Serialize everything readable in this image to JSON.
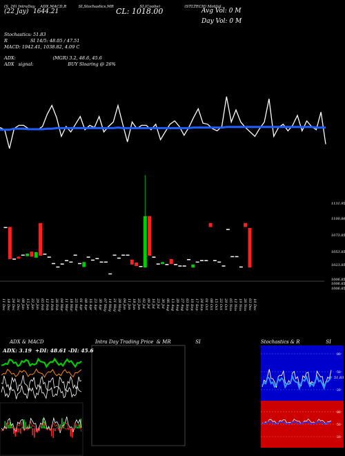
{
  "header": {
    "line1_a": "(22 Jay)",
    "line1_b": "1644.21",
    "row1_labels": [
      "(S, 20) IntraDay",
      "ADX,MACD,R",
      "SI,Stochastics,MR",
      "SI (Coolie)",
      "(STLTECH) Motilal..."
    ],
    "close": "CL: 1018.00",
    "avg_vol": "Avg Vol: 0   M",
    "day_vol": "Day Vol: 0   M",
    "stoch": "Stochastics: 51.83",
    "rsi_line": "R                SI 14/5: 48.05 / 47.51",
    "macd_line": "MACD: 1942.41, 1038.82, 4.09 C",
    "adx_line": "ADX:                          (MGR) 3.2, 48.6, 45.6",
    "adx_signal": "ADX   signal:                        BUY Sloaring @ 26%"
  },
  "colors": {
    "bull": "#00cc00",
    "bear": "#ff2020",
    "neutral": "#ffffff",
    "ma": "#1e5fff",
    "price_line": "#ffffff"
  },
  "chart_data": [
    {
      "type": "line",
      "title": "",
      "series": [
        {
          "values": [
            62,
            66,
            100,
            64,
            58,
            58,
            64,
            66,
            66,
            60,
            38,
            22,
            44,
            78,
            60,
            70,
            56,
            42,
            66,
            58,
            62,
            42,
            70,
            60,
            52,
            22,
            56,
            88,
            52,
            64,
            58,
            58,
            66,
            56,
            84,
            70,
            56,
            50,
            60,
            76,
            62,
            44,
            28,
            54,
            56,
            64,
            68,
            60,
            6,
            52,
            30,
            52,
            62,
            70,
            78,
            64,
            52,
            10,
            78,
            62,
            56,
            68,
            58,
            40,
            68,
            50,
            60,
            66,
            34,
            92
          ]
        },
        {
          "values": [
            66,
            66,
            66,
            64,
            64,
            64,
            65,
            65,
            65,
            65,
            64,
            64,
            63,
            63,
            63,
            63,
            63,
            63,
            63,
            63,
            63,
            63,
            63,
            63,
            63,
            62,
            63,
            63,
            63,
            63,
            63,
            63,
            63,
            63,
            63,
            63,
            63,
            63,
            63,
            63,
            63,
            62,
            62,
            62,
            62,
            62,
            62,
            62,
            61,
            61,
            61,
            61,
            61,
            61,
            61,
            61,
            61,
            61,
            61,
            61,
            61,
            61,
            61,
            61,
            61,
            61,
            61,
            62,
            62,
            62
          ]
        }
      ]
    },
    {
      "type": "candlestick",
      "title": "",
      "y_ticks": [
        "1131.95",
        "1100.86",
        "1073.85",
        "1053.85",
        "1023.85",
        "1006.85",
        "1006.85",
        "1006.85"
      ],
      "x_ticks": [
        "11 Dec",
        "18 Dec",
        "24 Dec",
        "31 Dec",
        "08 Jan",
        "15 Jan",
        "22 Jan",
        "29 Jan",
        "05 Feb",
        "12 Feb",
        "19 Feb",
        "26 Feb",
        "04 Mar",
        "11 Mar",
        "18 Mar",
        "25 Mar",
        "01 Apr",
        "08 Apr",
        "16 Apr",
        "23 Apr",
        "30 Apr",
        "07 May",
        "14 May",
        "21 May",
        "28 May",
        "04 Jun",
        "11 Jun",
        "18 Jun",
        "25 Jun",
        "02 Jul",
        "09 Jul",
        "16 Jul",
        "23 Jul",
        "30 Jul",
        "06 Aug",
        "13 Aug",
        "20 Aug",
        "27 Aug",
        "03 Sep",
        "10 Sep",
        "17 Sep",
        "24 Sep",
        "01 Oct",
        "08 Oct",
        "15 Oct",
        "22 Oct",
        "29 Oct",
        "05 Nov",
        "12 Nov",
        "19 Nov",
        "26 Nov",
        "03 Dec",
        "10 Dec"
      ],
      "candles": [
        {
          "i": 0,
          "o": 1100,
          "c": 1100,
          "h": 1100,
          "l": 1100,
          "d": "n"
        },
        {
          "i": 1,
          "o": 1100,
          "c": 1035,
          "h": 1100,
          "l": 1035,
          "d": "r"
        },
        {
          "i": 2,
          "o": 1036,
          "c": 1036,
          "h": 1036,
          "l": 1036,
          "d": "n"
        },
        {
          "i": 3,
          "o": 1040,
          "c": 1036,
          "h": 1040,
          "l": 1036,
          "d": "r"
        },
        {
          "i": 4,
          "o": 1044,
          "c": 1044,
          "h": 1044,
          "l": 1044,
          "d": "n"
        },
        {
          "i": 5,
          "o": 1041,
          "c": 1046,
          "h": 1046,
          "l": 1041,
          "d": "g"
        },
        {
          "i": 6,
          "o": 1050,
          "c": 1040,
          "h": 1050,
          "l": 1040,
          "d": "r"
        },
        {
          "i": 7,
          "o": 1038,
          "c": 1049,
          "h": 1049,
          "l": 1038,
          "d": "g"
        },
        {
          "i": 8,
          "o": 1108,
          "c": 1042,
          "h": 1108,
          "l": 1042,
          "d": "r"
        },
        {
          "i": 9,
          "o": 1046,
          "c": 1046,
          "h": 1046,
          "l": 1046,
          "d": "n"
        },
        {
          "i": 10,
          "o": 1040,
          "c": 1040,
          "h": 1040,
          "l": 1040,
          "d": "n"
        },
        {
          "i": 11,
          "o": 1027,
          "c": 1027,
          "h": 1027,
          "l": 1027,
          "d": "n"
        },
        {
          "i": 12,
          "o": 1020,
          "c": 1020,
          "h": 1020,
          "l": 1020,
          "d": "n"
        },
        {
          "i": 13,
          "o": 1026,
          "c": 1026,
          "h": 1026,
          "l": 1026,
          "d": "n"
        },
        {
          "i": 14,
          "o": 1033,
          "c": 1033,
          "h": 1033,
          "l": 1033,
          "d": "n"
        },
        {
          "i": 15,
          "o": 1030,
          "c": 1030,
          "h": 1030,
          "l": 1030,
          "d": "n"
        },
        {
          "i": 16,
          "o": 1044,
          "c": 1044,
          "h": 1044,
          "l": 1044,
          "d": "n"
        },
        {
          "i": 17,
          "o": 1027,
          "c": 1027,
          "h": 1027,
          "l": 1027,
          "d": "n"
        },
        {
          "i": 18,
          "o": 1019,
          "c": 1029,
          "h": 1029,
          "l": 1019,
          "d": "g"
        },
        {
          "i": 19,
          "o": 1040,
          "c": 1040,
          "h": 1040,
          "l": 1040,
          "d": "n"
        },
        {
          "i": 20,
          "o": 1034,
          "c": 1034,
          "h": 1034,
          "l": 1034,
          "d": "n"
        },
        {
          "i": 21,
          "o": 1037,
          "c": 1037,
          "h": 1037,
          "l": 1037,
          "d": "n"
        },
        {
          "i": 22,
          "o": 1030,
          "c": 1030,
          "h": 1030,
          "l": 1030,
          "d": "n"
        },
        {
          "i": 23,
          "o": 1030,
          "c": 1030,
          "h": 1030,
          "l": 1030,
          "d": "n"
        },
        {
          "i": 24,
          "o": 1006,
          "c": 1006,
          "h": 1006,
          "l": 1006,
          "d": "n"
        },
        {
          "i": 25,
          "o": 1044,
          "c": 1044,
          "h": 1044,
          "l": 1044,
          "d": "n"
        },
        {
          "i": 26,
          "o": 1038,
          "c": 1038,
          "h": 1038,
          "l": 1038,
          "d": "n"
        },
        {
          "i": 27,
          "o": 1044,
          "c": 1044,
          "h": 1044,
          "l": 1044,
          "d": "n"
        },
        {
          "i": 28,
          "o": 1044,
          "c": 1044,
          "h": 1044,
          "l": 1044,
          "d": "n"
        },
        {
          "i": 29,
          "o": 1034,
          "c": 1024,
          "h": 1034,
          "l": 1024,
          "d": "r"
        },
        {
          "i": 30,
          "o": 1028,
          "c": 1021,
          "h": 1028,
          "l": 1021,
          "d": "r"
        },
        {
          "i": 31,
          "o": 1021,
          "c": 1021,
          "h": 1021,
          "l": 1021,
          "d": "n"
        },
        {
          "i": 32,
          "o": 1018,
          "c": 1122,
          "h": 1205,
          "l": 1018,
          "d": "g"
        },
        {
          "i": 33,
          "o": 1122,
          "c": 1042,
          "h": 1122,
          "l": 1042,
          "d": "r"
        },
        {
          "i": 34,
          "o": 1040,
          "c": 1040,
          "h": 1040,
          "l": 1040,
          "d": "n"
        },
        {
          "i": 35,
          "o": 1026,
          "c": 1026,
          "h": 1026,
          "l": 1026,
          "d": "n"
        },
        {
          "i": 36,
          "o": 1025,
          "c": 1029,
          "h": 1029,
          "l": 1025,
          "d": "g"
        },
        {
          "i": 37,
          "o": 1025,
          "c": 1025,
          "h": 1025,
          "l": 1025,
          "d": "n"
        },
        {
          "i": 38,
          "o": 1035,
          "c": 1025,
          "h": 1035,
          "l": 1025,
          "d": "r"
        },
        {
          "i": 39,
          "o": 1025,
          "c": 1025,
          "h": 1025,
          "l": 1025,
          "d": "n"
        },
        {
          "i": 40,
          "o": 1022,
          "c": 1022,
          "h": 1022,
          "l": 1022,
          "d": "n"
        },
        {
          "i": 41,
          "o": 1022,
          "c": 1022,
          "h": 1022,
          "l": 1022,
          "d": "n"
        },
        {
          "i": 42,
          "o": 1035,
          "c": 1035,
          "h": 1035,
          "l": 1035,
          "d": "n"
        },
        {
          "i": 43,
          "o": 1018,
          "c": 1024,
          "h": 1024,
          "l": 1018,
          "d": "g"
        },
        {
          "i": 44,
          "o": 1030,
          "c": 1030,
          "h": 1030,
          "l": 1030,
          "d": "n"
        },
        {
          "i": 45,
          "o": 1033,
          "c": 1033,
          "h": 1033,
          "l": 1033,
          "d": "n"
        },
        {
          "i": 46,
          "o": 1033,
          "c": 1033,
          "h": 1033,
          "l": 1033,
          "d": "n"
        },
        {
          "i": 47,
          "o": 1108,
          "c": 1100,
          "h": 1108,
          "l": 1100,
          "d": "r"
        },
        {
          "i": 48,
          "o": 1033,
          "c": 1033,
          "h": 1033,
          "l": 1033,
          "d": "n"
        },
        {
          "i": 49,
          "o": 1030,
          "c": 1030,
          "h": 1030,
          "l": 1030,
          "d": "n"
        },
        {
          "i": 50,
          "o": 1022,
          "c": 1022,
          "h": 1022,
          "l": 1022,
          "d": "n"
        },
        {
          "i": 51,
          "o": 1096,
          "c": 1096,
          "h": 1096,
          "l": 1096,
          "d": "n"
        },
        {
          "i": 52,
          "o": 1041,
          "c": 1041,
          "h": 1041,
          "l": 1041,
          "d": "n"
        },
        {
          "i": 53,
          "o": 1041,
          "c": 1041,
          "h": 1041,
          "l": 1041,
          "d": "n"
        },
        {
          "i": 54,
          "o": 1020,
          "c": 1020,
          "h": 1020,
          "l": 1020,
          "d": "n"
        },
        {
          "i": 55,
          "o": 1108,
          "c": 1100,
          "h": 1108,
          "l": 1100,
          "d": "r"
        },
        {
          "i": 56,
          "o": 1098,
          "c": 1018,
          "h": 1098,
          "l": 1018,
          "d": "r"
        }
      ]
    }
  ],
  "panels": {
    "left_title": "ADX  & MACD",
    "left_readout": "ADX: 3.19  +DI: 48.61 -DI: 45.6",
    "mid_title": "Intra Day Trading Price  & MR                SI",
    "right_title": "Stochastics & R                 SI",
    "right_upper_ticks": [
      "80",
      "50",
      "20"
    ],
    "right_lower_ticks": [
      "80",
      "50",
      "20"
    ],
    "stoch_readout": "51.83"
  }
}
